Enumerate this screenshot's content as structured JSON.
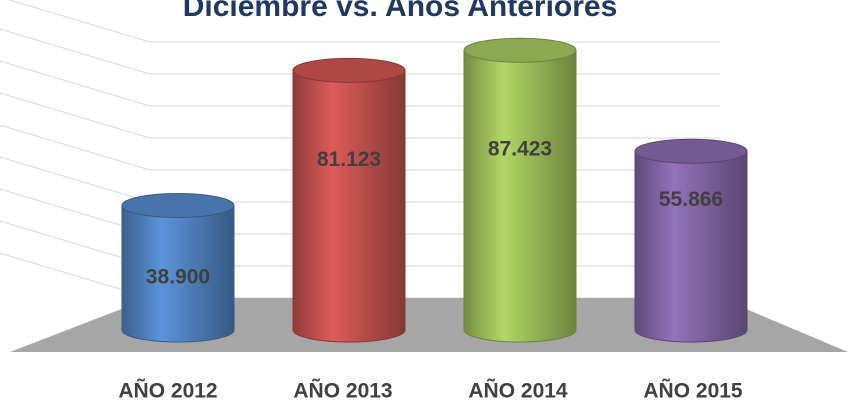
{
  "chart_data": {
    "type": "bar",
    "title": "Diciembre vs. Años Anteriores",
    "categories": [
      "AÑO 2012",
      "AÑO 2013",
      "AÑO 2014",
      "AÑO 2015"
    ],
    "values": [
      38900,
      81123,
      87423,
      55866
    ],
    "value_labels": [
      "38.900",
      "81.123",
      "87.423",
      "55.866"
    ],
    "colors": [
      "#4f81bd",
      "#c0504d",
      "#9bbb59",
      "#8064a2"
    ],
    "ylim": [
      0,
      90000
    ],
    "yticks": [
      0,
      10000,
      20000,
      30000,
      40000,
      50000,
      60000,
      70000,
      80000,
      90000
    ],
    "grid": true
  }
}
